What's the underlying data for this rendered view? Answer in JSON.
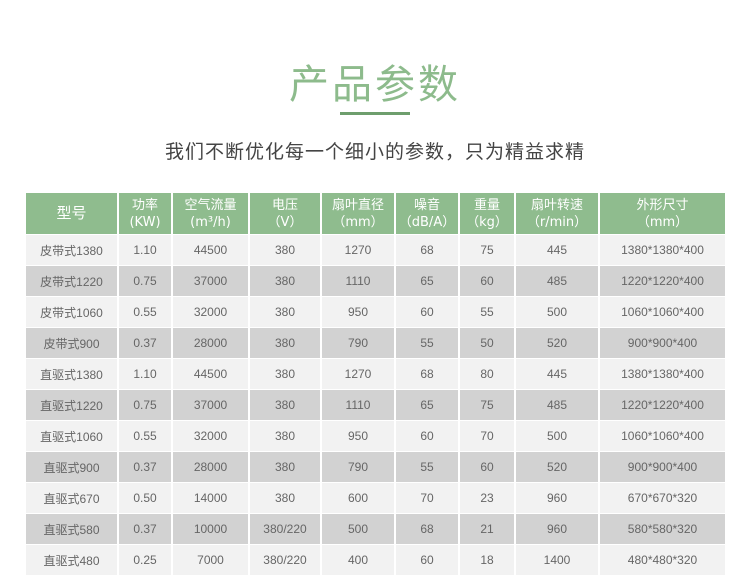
{
  "title": "产品参数",
  "subtitle": "我们不断优化每一个细小的参数，只为精益求精",
  "colors": {
    "header_bg": "#8fbc8e",
    "title": "#8dbb8c",
    "row_light": "#f2f2f2",
    "row_dark": "#d2d2d2"
  },
  "table": {
    "headers": [
      {
        "name": "型号",
        "unit": ""
      },
      {
        "name": "功率",
        "unit": "(KW)"
      },
      {
        "name": "空气流量",
        "unit": "(m³/h)"
      },
      {
        "name": "电压",
        "unit": "（V）"
      },
      {
        "name": "扇叶直径",
        "unit": "（mm）"
      },
      {
        "name": "噪音",
        "unit": "（dB/A）"
      },
      {
        "name": "重量",
        "unit": "（kg）"
      },
      {
        "name": "扇叶转速",
        "unit": "（r/min）"
      },
      {
        "name": "外形尺寸",
        "unit": "（mm）"
      }
    ],
    "rows": [
      [
        "皮带式1380",
        "1.10",
        "44500",
        "380",
        "1270",
        "68",
        "75",
        "445",
        "1380*1380*400"
      ],
      [
        "皮带式1220",
        "0.75",
        "37000",
        "380",
        "1110",
        "65",
        "60",
        "485",
        "1220*1220*400"
      ],
      [
        "皮带式1060",
        "0.55",
        "32000",
        "380",
        "950",
        "60",
        "55",
        "500",
        "1060*1060*400"
      ],
      [
        "皮带式900",
        "0.37",
        "28000",
        "380",
        "790",
        "55",
        "50",
        "520",
        "900*900*400"
      ],
      [
        "直驱式1380",
        "1.10",
        "44500",
        "380",
        "1270",
        "68",
        "80",
        "445",
        "1380*1380*400"
      ],
      [
        "直驱式1220",
        "0.75",
        "37000",
        "380",
        "1110",
        "65",
        "75",
        "485",
        "1220*1220*400"
      ],
      [
        "直驱式1060",
        "0.55",
        "32000",
        "380",
        "950",
        "60",
        "70",
        "500",
        "1060*1060*400"
      ],
      [
        "直驱式900",
        "0.37",
        "28000",
        "380",
        "790",
        "55",
        "60",
        "520",
        "900*900*400"
      ],
      [
        "直驱式670",
        "0.50",
        "14000",
        "380",
        "600",
        "70",
        "23",
        "960",
        "670*670*320"
      ],
      [
        "直驱式580",
        "0.37",
        "10000",
        "380/220",
        "500",
        "68",
        "21",
        "960",
        "580*580*320"
      ],
      [
        "直驱式480",
        "0.25",
        "7000",
        "380/220",
        "400",
        "60",
        "18",
        "1400",
        "480*480*320"
      ]
    ]
  }
}
